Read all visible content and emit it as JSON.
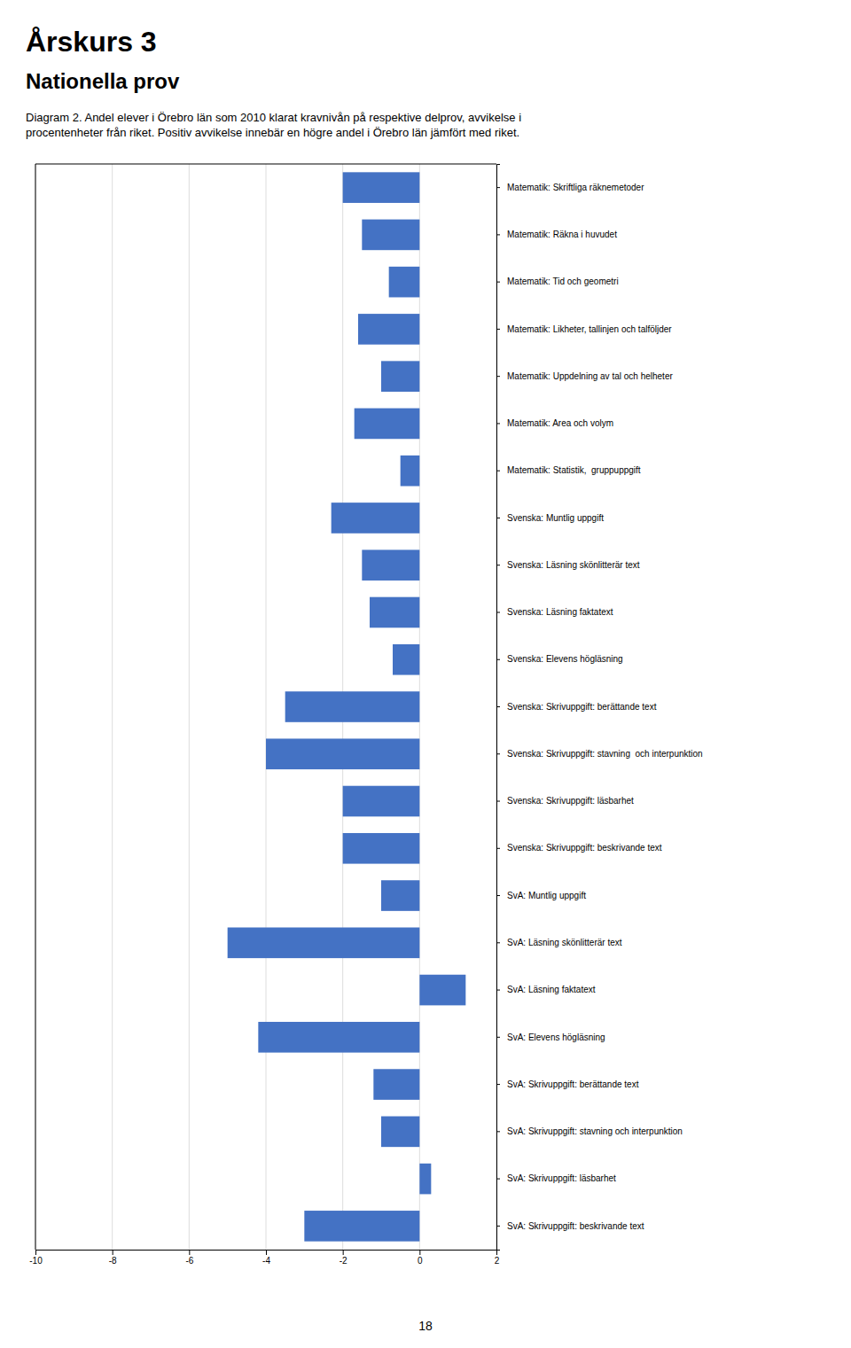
{
  "chart_data": {
    "type": "bar",
    "orientation": "horizontal",
    "title": "Årskurs 3",
    "subtitle": "Nationella prov",
    "annotations": [
      "Diagram 2. Andel elever i Örebro län som 2010 klarat kravnivån på respektive delprov, avvikelse i",
      "procentenheter från riket. Positiv avvikelse innebär en högre andel i Örebro län jämfört med riket.",
      "18"
    ],
    "categories": [
      "Matematik: Skriftliga räknemetoder",
      "Matematik: Räkna i huvudet",
      "Matematik: Tid och geometri",
      "Matematik: Likheter, tallinjen och talföljder",
      "Matematik: Uppdelning av tal och helheter",
      "Matematik: Area och volym",
      "Matematik: Statistik,  gruppuppgift",
      "Svenska: Muntlig uppgift",
      "Svenska: Läsning skönlitterär text",
      "Svenska: Läsning faktatext",
      "Svenska: Elevens högläsning",
      "Svenska: Skrivuppgift: berättande text",
      "Svenska: Skrivuppgift: stavning  och interpunktion",
      "Svenska: Skrivuppgift: läsbarhet",
      "Svenska: Skrivuppgift: beskrivande text",
      "SvA: Muntlig uppgift",
      "SvA: Läsning skönlitterär text",
      "SvA: Läsning faktatext",
      "SvA: Elevens högläsning",
      "SvA: Skrivuppgift: berättande text",
      "SvA: Skrivuppgift: stavning och interpunktion",
      "SvA: Skrivuppgift: läsbarhet",
      "SvA: Skrivuppgift: beskrivande text"
    ],
    "values": [
      -2.0,
      -1.5,
      -0.8,
      -1.6,
      -1.0,
      -1.7,
      -0.5,
      -2.3,
      -1.5,
      -1.3,
      -0.7,
      -3.5,
      -4.0,
      -2.0,
      -2.0,
      -1.0,
      -5.0,
      1.2,
      -4.2,
      -1.2,
      -1.0,
      0.3,
      -3.0
    ],
    "color": "#4472C4",
    "xlim": [
      -10,
      2
    ],
    "xticks": [
      -10,
      -8,
      -6,
      -4,
      -2,
      0,
      2
    ],
    "grid": true
  }
}
